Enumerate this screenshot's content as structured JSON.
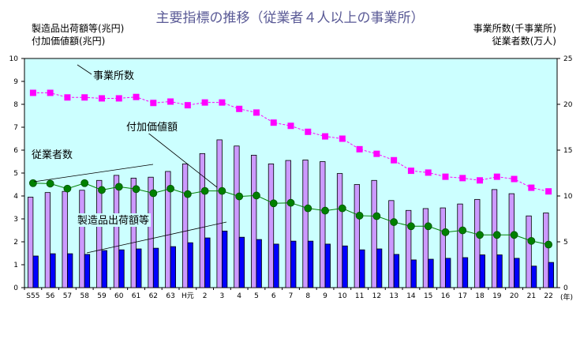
{
  "chart_data": {
    "type": "bar+line",
    "title": "主要指標の推移（従業者４人以上の事業所）",
    "left_axis_labels": [
      "製造品出荷額等(兆円)",
      "付加価値額(兆円)"
    ],
    "right_axis_labels": [
      "事業所数(千事業所)",
      "従業者数(万人)"
    ],
    "x_unit": "(年)",
    "categories": [
      "S55",
      "56",
      "57",
      "58",
      "59",
      "60",
      "61",
      "62",
      "63",
      "H元",
      "2",
      "3",
      "4",
      "5",
      "6",
      "7",
      "8",
      "9",
      "10",
      "11",
      "12",
      "13",
      "14",
      "15",
      "16",
      "17",
      "18",
      "19",
      "20",
      "21",
      "22"
    ],
    "ylim_left": [
      0,
      10
    ],
    "yticks_left": [
      0,
      1,
      2,
      3,
      4,
      5,
      6,
      7,
      8,
      9,
      10
    ],
    "ylim_right": [
      0,
      25
    ],
    "yticks_right": [
      0,
      5,
      10,
      15,
      20,
      25
    ],
    "series": [
      {
        "name": "製造品出荷額等",
        "type": "bar",
        "axis": "left",
        "color": "#cc99ff",
        "values": [
          3.95,
          4.15,
          4.2,
          4.25,
          4.68,
          4.9,
          4.78,
          4.82,
          5.07,
          5.4,
          5.85,
          6.45,
          6.18,
          5.78,
          5.4,
          5.55,
          5.57,
          5.5,
          4.98,
          4.5,
          4.68,
          3.8,
          3.37,
          3.45,
          3.48,
          3.65,
          3.85,
          4.28,
          4.1,
          3.13,
          3.26
        ]
      },
      {
        "name": "付加価値額",
        "type": "bar",
        "axis": "left",
        "color": "#0000ff",
        "values": [
          1.38,
          1.48,
          1.48,
          1.45,
          1.62,
          1.65,
          1.69,
          1.72,
          1.79,
          1.96,
          2.17,
          2.47,
          2.2,
          2.1,
          1.9,
          2.03,
          2.03,
          1.9,
          1.82,
          1.65,
          1.69,
          1.45,
          1.21,
          1.24,
          1.28,
          1.31,
          1.43,
          1.43,
          1.28,
          0.94,
          1.1
        ]
      },
      {
        "name": "従業者数",
        "type": "line",
        "axis": "right",
        "color": "#ff00ff",
        "marker": "square",
        "values": [
          21.25,
          21.25,
          20.75,
          20.75,
          20.65,
          20.65,
          20.8,
          20.15,
          20.3,
          19.9,
          20.2,
          20.2,
          19.5,
          19.1,
          18.0,
          17.65,
          17.0,
          16.5,
          16.25,
          15.1,
          14.6,
          13.9,
          12.75,
          12.55,
          12.1,
          11.95,
          11.7,
          12.1,
          11.85,
          10.9,
          10.5
        ]
      },
      {
        "name": "事業所数",
        "type": "line",
        "axis": "right",
        "color": "#008000",
        "marker": "circle",
        "values": [
          11.4,
          11.35,
          10.8,
          11.4,
          10.65,
          11.0,
          10.75,
          10.3,
          10.8,
          10.2,
          10.55,
          10.55,
          9.95,
          10.05,
          9.2,
          9.25,
          8.65,
          8.4,
          8.65,
          7.85,
          7.8,
          7.15,
          6.7,
          6.7,
          6.05,
          6.25,
          5.75,
          5.75,
          5.75,
          5.1,
          4.7
        ]
      }
    ],
    "background": "#ccffff",
    "grid": false,
    "legend": "callout labels"
  }
}
